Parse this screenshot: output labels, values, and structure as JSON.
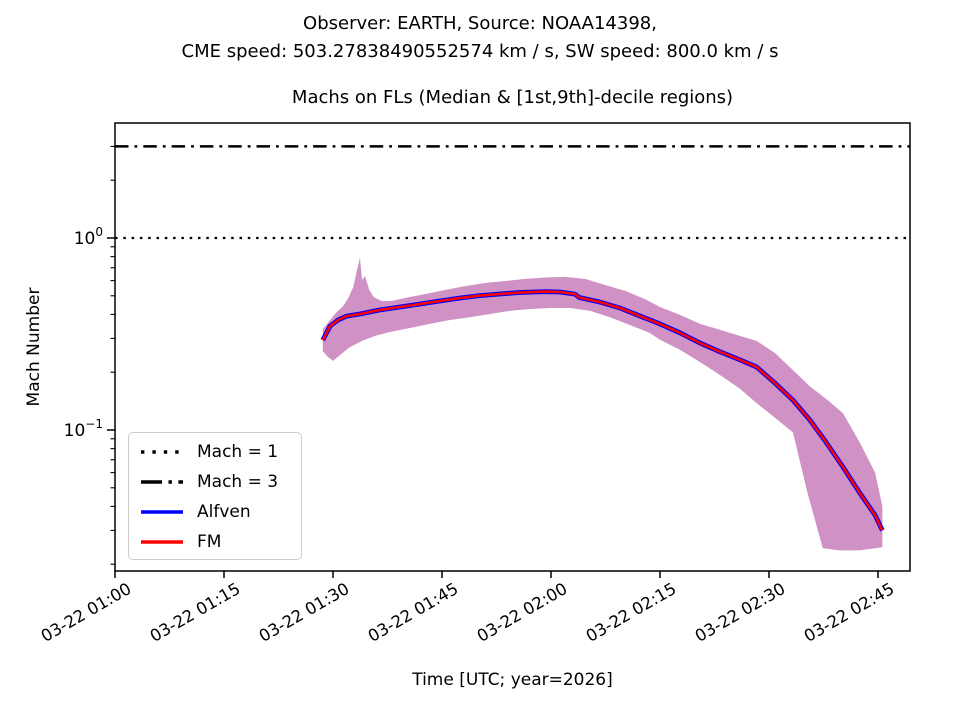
{
  "header": {
    "line1": "Observer: EARTH, Source: NOAA14398,",
    "line2": "CME speed: 503.27838490552574 km / s, SW speed: 800.0 km / s"
  },
  "chart_data": {
    "type": "line",
    "title": "Machs on FLs (Median & [1st,9th]-decile regions)",
    "xlabel": "Time [UTC; year=2026]",
    "ylabel": "Mach Number",
    "yscale": "log",
    "ylim": [
      0.0184,
      3.97
    ],
    "x_unit": "minutes after 2026-03-22 01:00 UTC",
    "grid": false,
    "x_ticks": [
      {
        "t": 0,
        "label": "03-22 01:00"
      },
      {
        "t": 15,
        "label": "03-22 01:15"
      },
      {
        "t": 30,
        "label": "03-22 01:30"
      },
      {
        "t": 45,
        "label": "03-22 01:45"
      },
      {
        "t": 60,
        "label": "03-22 02:00"
      },
      {
        "t": 75,
        "label": "03-22 02:15"
      },
      {
        "t": 90,
        "label": "03-22 02:30"
      },
      {
        "t": 105,
        "label": "03-22 02:45"
      }
    ],
    "y_ticks": [
      {
        "value": 1,
        "base": "10",
        "exp": "0"
      },
      {
        "value": 0.1,
        "base": "10",
        "exp": "−1"
      }
    ],
    "reference_lines": [
      {
        "label": "Mach = 1",
        "value": 1,
        "style": "dotted",
        "color": "#000000"
      },
      {
        "label": "Mach = 3",
        "value": 3,
        "style": "dashdot",
        "color": "#000000"
      }
    ],
    "colors": {
      "band": "#d092c5",
      "alfven": "#0000ff",
      "fm": "#ff0000"
    },
    "series": [
      {
        "name": "Alfven",
        "color": "#0000ff",
        "coincides_with_fm": true,
        "points": [
          [
            28.6,
            0.294
          ],
          [
            29.6,
            0.348
          ],
          [
            30.7,
            0.374
          ],
          [
            31.9,
            0.392
          ],
          [
            33.7,
            0.402
          ],
          [
            36.5,
            0.422
          ],
          [
            39.2,
            0.437
          ],
          [
            42.0,
            0.453
          ],
          [
            44.7,
            0.47
          ],
          [
            47.5,
            0.487
          ],
          [
            50.2,
            0.501
          ],
          [
            53.0,
            0.511
          ],
          [
            55.7,
            0.52
          ],
          [
            59.2,
            0.526
          ],
          [
            61.2,
            0.523
          ],
          [
            63.3,
            0.51
          ],
          [
            63.9,
            0.49
          ],
          [
            66.7,
            0.464
          ],
          [
            69.5,
            0.432
          ],
          [
            72.2,
            0.393
          ],
          [
            75.0,
            0.357
          ],
          [
            77.8,
            0.32
          ],
          [
            80.5,
            0.284
          ],
          [
            83.3,
            0.255
          ],
          [
            86.0,
            0.232
          ],
          [
            88.3,
            0.213
          ],
          [
            90.8,
            0.176
          ],
          [
            93.3,
            0.143
          ],
          [
            95.6,
            0.113
          ],
          [
            97.7,
            0.088
          ],
          [
            100.2,
            0.064
          ],
          [
            102.5,
            0.047
          ],
          [
            104.6,
            0.036
          ],
          [
            105.6,
            0.03
          ]
        ]
      },
      {
        "name": "FM",
        "color": "#ff0000",
        "points": [
          [
            28.6,
            0.294
          ],
          [
            29.6,
            0.348
          ],
          [
            30.7,
            0.374
          ],
          [
            31.9,
            0.392
          ],
          [
            33.7,
            0.402
          ],
          [
            36.5,
            0.422
          ],
          [
            39.2,
            0.437
          ],
          [
            42.0,
            0.453
          ],
          [
            44.7,
            0.47
          ],
          [
            47.5,
            0.487
          ],
          [
            50.2,
            0.501
          ],
          [
            53.0,
            0.511
          ],
          [
            55.7,
            0.52
          ],
          [
            59.2,
            0.526
          ],
          [
            61.2,
            0.523
          ],
          [
            63.3,
            0.51
          ],
          [
            63.9,
            0.49
          ],
          [
            66.7,
            0.464
          ],
          [
            69.5,
            0.432
          ],
          [
            72.2,
            0.393
          ],
          [
            75.0,
            0.357
          ],
          [
            77.8,
            0.32
          ],
          [
            80.5,
            0.284
          ],
          [
            83.3,
            0.255
          ],
          [
            86.0,
            0.232
          ],
          [
            88.3,
            0.213
          ],
          [
            90.8,
            0.176
          ],
          [
            93.3,
            0.143
          ],
          [
            95.6,
            0.113
          ],
          [
            97.7,
            0.088
          ],
          [
            100.2,
            0.064
          ],
          [
            102.5,
            0.047
          ],
          [
            104.6,
            0.036
          ],
          [
            105.6,
            0.03
          ]
        ]
      }
    ],
    "band": {
      "name": "[1st,9th]-decile region",
      "upper": [
        [
          28.6,
          0.335
        ],
        [
          29.6,
          0.374
        ],
        [
          30.5,
          0.411
        ],
        [
          31.4,
          0.442
        ],
        [
          32.1,
          0.487
        ],
        [
          32.8,
          0.556
        ],
        [
          33.3,
          0.681
        ],
        [
          33.7,
          0.787
        ],
        [
          34.0,
          0.604
        ],
        [
          34.4,
          0.634
        ],
        [
          35.0,
          0.536
        ],
        [
          35.6,
          0.492
        ],
        [
          36.7,
          0.47
        ],
        [
          38.1,
          0.47
        ],
        [
          39.9,
          0.487
        ],
        [
          42.7,
          0.511
        ],
        [
          45.4,
          0.536
        ],
        [
          48.2,
          0.562
        ],
        [
          50.9,
          0.583
        ],
        [
          53.7,
          0.597
        ],
        [
          56.4,
          0.612
        ],
        [
          59.2,
          0.623
        ],
        [
          61.9,
          0.627
        ],
        [
          64.7,
          0.612
        ],
        [
          67.4,
          0.57
        ],
        [
          70.2,
          0.53
        ],
        [
          72.9,
          0.481
        ],
        [
          75.0,
          0.437
        ],
        [
          77.8,
          0.397
        ],
        [
          80.5,
          0.357
        ],
        [
          83.3,
          0.332
        ],
        [
          86.0,
          0.309
        ],
        [
          88.3,
          0.291
        ],
        [
          90.8,
          0.252
        ],
        [
          93.3,
          0.205
        ],
        [
          95.6,
          0.169
        ],
        [
          98.1,
          0.143
        ],
        [
          100.2,
          0.122
        ],
        [
          102.5,
          0.086
        ],
        [
          104.6,
          0.06
        ],
        [
          105.6,
          0.04
        ]
      ],
      "lower": [
        [
          28.6,
          0.258
        ],
        [
          29.3,
          0.24
        ],
        [
          30.0,
          0.229
        ],
        [
          31.0,
          0.246
        ],
        [
          32.3,
          0.27
        ],
        [
          34.0,
          0.291
        ],
        [
          35.8,
          0.309
        ],
        [
          37.8,
          0.324
        ],
        [
          40.6,
          0.34
        ],
        [
          43.3,
          0.357
        ],
        [
          46.1,
          0.374
        ],
        [
          48.8,
          0.387
        ],
        [
          51.6,
          0.402
        ],
        [
          54.3,
          0.417
        ],
        [
          57.1,
          0.427
        ],
        [
          59.9,
          0.432
        ],
        [
          62.6,
          0.432
        ],
        [
          65.4,
          0.417
        ],
        [
          68.1,
          0.387
        ],
        [
          70.9,
          0.352
        ],
        [
          73.6,
          0.32
        ],
        [
          75.0,
          0.295
        ],
        [
          77.8,
          0.261
        ],
        [
          80.5,
          0.226
        ],
        [
          83.3,
          0.193
        ],
        [
          86.0,
          0.164
        ],
        [
          88.3,
          0.138
        ],
        [
          90.8,
          0.116
        ],
        [
          93.3,
          0.097
        ],
        [
          95.3,
          0.047
        ],
        [
          97.4,
          0.0242
        ],
        [
          99.7,
          0.0236
        ],
        [
          102.5,
          0.0236
        ],
        [
          105.6,
          0.0245
        ]
      ]
    },
    "legend": {
      "position": "lower left",
      "items": [
        {
          "label": "Mach = 1"
        },
        {
          "label": "Mach = 3"
        },
        {
          "label": "Alfven"
        },
        {
          "label": "FM"
        }
      ]
    }
  }
}
